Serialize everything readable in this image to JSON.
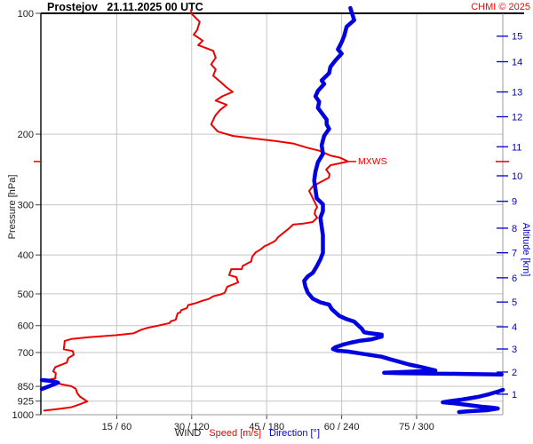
{
  "header": {
    "title": "Prostejov   21.11.2025 00 UTC",
    "copyright": "CHMI © 2025"
  },
  "axes": {
    "left_title": "Pressure [hPa]",
    "right_title": "Altitude [km]",
    "bottom": {
      "wind_label": "WIND",
      "speed_label": "Speed [m/s]",
      "direction_label": "Direction [°]"
    },
    "pressure_ticks": [
      100,
      200,
      300,
      400,
      500,
      600,
      700,
      850,
      925,
      1000
    ],
    "altitude_ticks": [
      {
        "km": 1,
        "hPa": 889
      },
      {
        "km": 2,
        "hPa": 783
      },
      {
        "km": 3,
        "hPa": 686
      },
      {
        "km": 4,
        "hPa": 604
      },
      {
        "km": 5,
        "hPa": 524
      },
      {
        "km": 6,
        "hPa": 456
      },
      {
        "km": 7,
        "hPa": 395
      },
      {
        "km": 8,
        "hPa": 343
      },
      {
        "km": 9,
        "hPa": 294
      },
      {
        "km": 10,
        "hPa": 254
      },
      {
        "km": 11,
        "hPa": 215
      },
      {
        "km": 12,
        "hPa": 181
      },
      {
        "km": 13,
        "hPa": 157
      },
      {
        "km": 14,
        "hPa": 132
      },
      {
        "km": 15,
        "hPa": 114
      }
    ],
    "x_ticks": [
      {
        "label": "15 / 60",
        "speed": 15,
        "direction": 60
      },
      {
        "label": "30 / 120",
        "speed": 30,
        "direction": 120
      },
      {
        "label": "45 / 180",
        "speed": 45,
        "direction": 180
      },
      {
        "label": "60 / 240",
        "speed": 60,
        "direction": 240
      },
      {
        "label": "75 / 300",
        "speed": 75,
        "direction": 300
      }
    ]
  },
  "annotations": {
    "mxws_label": "MXWS",
    "mxws_hPa": 234,
    "mxws_speed": 61.3
  },
  "colors": {
    "speed": "#ee0000",
    "direction": "#0000e0",
    "grid": "#c5c5c5",
    "axis_black": "#000000",
    "axis_gray": "#9a9a9a",
    "pressure_label": "#1a1a1a",
    "altitude_label": "#0000cc",
    "copyright": "#ff0000"
  },
  "chart_data": {
    "type": "line",
    "title": "Prostejov 21.11.2025 00 UTC",
    "xlabel": "WIND Speed [m/s] Direction [°]",
    "ylabel": "Pressure [hPa]",
    "y_axis": {
      "scale": "log",
      "range": [
        100,
        1000
      ],
      "inverted_down": true
    },
    "speed_axis_range": [
      0,
      92
    ],
    "direction_axis_range": [
      0,
      369
    ],
    "grid": true,
    "series": [
      {
        "name": "Speed [m/s]",
        "units": "m/s",
        "color": "#ee0000",
        "points": [
          [
            98,
            29.9
          ],
          [
            100,
            29.9
          ],
          [
            105,
            31.6
          ],
          [
            110,
            31.1
          ],
          [
            113,
            30.4
          ],
          [
            117,
            32.2
          ],
          [
            120,
            31.3
          ],
          [
            124,
            34.3
          ],
          [
            129,
            34.8
          ],
          [
            134,
            33.9
          ],
          [
            138,
            34.8
          ],
          [
            143,
            34.3
          ],
          [
            148,
            35.7
          ],
          [
            153,
            37.0
          ],
          [
            157,
            38.2
          ],
          [
            161,
            36.1
          ],
          [
            165,
            34.8
          ],
          [
            169,
            37.0
          ],
          [
            174,
            35.7
          ],
          [
            180,
            34.7
          ],
          [
            189,
            33.9
          ],
          [
            197,
            35.2
          ],
          [
            202,
            38.2
          ],
          [
            205,
            42.3
          ],
          [
            208,
            46.7
          ],
          [
            211,
            50.3
          ],
          [
            216,
            53.0
          ],
          [
            220,
            55.6
          ],
          [
            226,
            57.7
          ],
          [
            229,
            59.7
          ],
          [
            234,
            61.3
          ],
          [
            239,
            57.8
          ],
          [
            245,
            56.9
          ],
          [
            252,
            57.6
          ],
          [
            257,
            57.4
          ],
          [
            264,
            55.6
          ],
          [
            270,
            54.2
          ],
          [
            277,
            53.5
          ],
          [
            285,
            54.0
          ],
          [
            297,
            54.7
          ],
          [
            304,
            55.1
          ],
          [
            310,
            54.7
          ],
          [
            316,
            54.6
          ],
          [
            323,
            55.1
          ],
          [
            331,
            54.2
          ],
          [
            334,
            52.4
          ],
          [
            336,
            50.3
          ],
          [
            344,
            49.4
          ],
          [
            348,
            48.9
          ],
          [
            361,
            47.3
          ],
          [
            369,
            46.7
          ],
          [
            377,
            45.3
          ],
          [
            380,
            44.6
          ],
          [
            388,
            43.7
          ],
          [
            394,
            42.8
          ],
          [
            404,
            42.1
          ],
          [
            415,
            41.9
          ],
          [
            426,
            40.2
          ],
          [
            434,
            40.0
          ],
          [
            434,
            37.9
          ],
          [
            449,
            37.5
          ],
          [
            454,
            38.9
          ],
          [
            468,
            39.3
          ],
          [
            480,
            37.1
          ],
          [
            497,
            36.6
          ],
          [
            502,
            35.7
          ],
          [
            507,
            34.3
          ],
          [
            515,
            33.4
          ],
          [
            520,
            32.2
          ],
          [
            528,
            30.7
          ],
          [
            533,
            29.3
          ],
          [
            543,
            29.0
          ],
          [
            549,
            27.9
          ],
          [
            556,
            27.7
          ],
          [
            559,
            27.2
          ],
          [
            580,
            26.8
          ],
          [
            585,
            25.8
          ],
          [
            591,
            25.6
          ],
          [
            600,
            23.3
          ],
          [
            607,
            21.3
          ],
          [
            613,
            20.1
          ],
          [
            627,
            18.3
          ],
          [
            634,
            14.8
          ],
          [
            641,
            9.4
          ],
          [
            648,
            5.9
          ],
          [
            655,
            4.6
          ],
          [
            687,
            4.4
          ],
          [
            694,
            6.2
          ],
          [
            709,
            6.4
          ],
          [
            723,
            5.3
          ],
          [
            742,
            5.0
          ],
          [
            761,
            2.7
          ],
          [
            780,
            2.3
          ],
          [
            788,
            2.8
          ],
          [
            812,
            2.7
          ],
          [
            820,
            1.1
          ],
          [
            841,
            4.1
          ],
          [
            849,
            5.9
          ],
          [
            862,
            6.8
          ],
          [
            883,
            7.1
          ],
          [
            901,
            7.6
          ],
          [
            927,
            9.1
          ],
          [
            945,
            7.3
          ],
          [
            958,
            5.9
          ],
          [
            968,
            3.2
          ],
          [
            977,
            0.5
          ]
        ]
      },
      {
        "name": "Direction [°]",
        "units": "deg",
        "color": "#0000e0",
        "segments": [
          [
            [
              97,
              247
            ],
            [
              104,
              250
            ],
            [
              108,
              244
            ],
            [
              114,
              242
            ],
            [
              118,
              240
            ],
            [
              123,
              237
            ],
            [
              126,
              240
            ],
            [
              131,
              235
            ],
            [
              136,
              231
            ],
            [
              141,
              230
            ],
            [
              147,
              224
            ],
            [
              150,
              226
            ],
            [
              156,
              221
            ],
            [
              161,
              219
            ],
            [
              166,
              222
            ],
            [
              172,
              221
            ],
            [
              184,
              228
            ],
            [
              189,
              228
            ],
            [
              194,
              230
            ],
            [
              202,
              226
            ],
            [
              213,
              224
            ],
            [
              224,
              225
            ],
            [
              235,
              221
            ],
            [
              248,
              219
            ],
            [
              261,
              218
            ],
            [
              274,
              219
            ],
            [
              289,
              220
            ],
            [
              299,
              225
            ],
            [
              311,
              225
            ],
            [
              323,
              223
            ],
            [
              340,
              224
            ],
            [
              357,
              225
            ],
            [
              375,
              225
            ],
            [
              395,
              225
            ],
            [
              410,
              223
            ],
            [
              427,
              220
            ],
            [
              443,
              217
            ],
            [
              452,
              213
            ],
            [
              464,
              210
            ],
            [
              480,
              211
            ],
            [
              497,
              213
            ],
            [
              514,
              217
            ],
            [
              525,
              223
            ],
            [
              532,
              230
            ],
            [
              545,
              232
            ],
            [
              556,
              235
            ],
            [
              567,
              238
            ],
            [
              578,
              244
            ],
            [
              586,
              250
            ],
            [
              598,
              253
            ],
            [
              610,
              256
            ],
            [
              623,
              258
            ],
            [
              626,
              262
            ],
            [
              629,
              267
            ],
            [
              632,
              272
            ],
            [
              639,
              272
            ],
            [
              649,
              264
            ],
            [
              655,
              254
            ],
            [
              662,
              247
            ],
            [
              669,
              241
            ],
            [
              679,
              235
            ],
            [
              686,
              233
            ],
            [
              693,
              237
            ],
            [
              696,
              245
            ],
            [
              703,
              254
            ],
            [
              710,
              263
            ],
            [
              717,
              272
            ],
            [
              728,
              279
            ],
            [
              735,
              284
            ],
            [
              750,
              294
            ],
            [
              761,
              304
            ],
            [
              776,
              315
            ],
            [
              780,
              301
            ],
            [
              784,
              283
            ],
            [
              786,
              274
            ],
            [
              788,
              287
            ],
            [
              790,
              315
            ],
            [
              792,
              343
            ],
            [
              794,
              368
            ]
          ],
          [
            [
              820,
              0
            ],
            [
              824,
              8
            ],
            [
              832,
              13
            ],
            [
              849,
              6
            ],
            [
              863,
              0
            ]
          ],
          [
            [
              867,
              369
            ],
            [
              876,
              365
            ],
            [
              889,
              358
            ],
            [
              903,
              349
            ],
            [
              917,
              336
            ],
            [
              926,
              326
            ],
            [
              931,
              321
            ],
            [
              936,
              329
            ],
            [
              945,
              340
            ],
            [
              955,
              352
            ],
            [
              960,
              360
            ],
            [
              965,
              365
            ],
            [
              975,
              356
            ],
            [
              980,
              343
            ],
            [
              985,
              334
            ]
          ]
        ]
      }
    ]
  }
}
